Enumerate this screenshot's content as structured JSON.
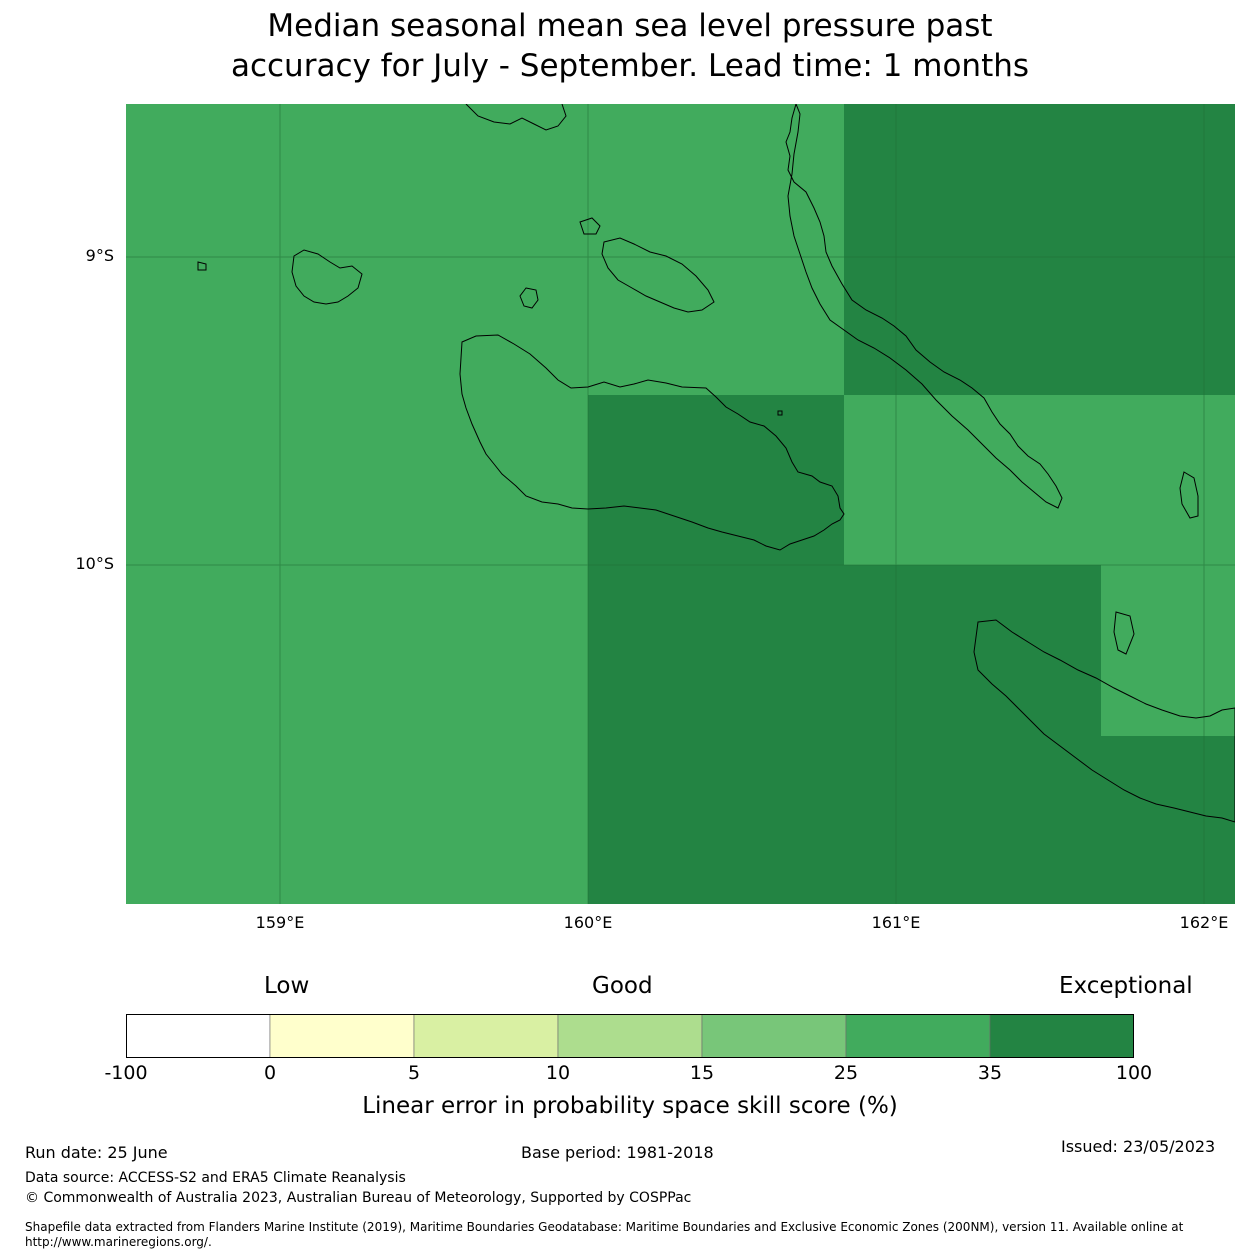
{
  "title": {
    "line1": "Median seasonal mean sea level pressure past",
    "line2": "accuracy for July - September. Lead time: 1 months"
  },
  "map": {
    "lat_ticks": [
      "9°S",
      "10°S"
    ],
    "lon_ticks": [
      "159°E",
      "160°E",
      "161°E",
      "162°E"
    ],
    "colors": {
      "band_25_35": "#41ab5d",
      "band_35_100": "#238443",
      "coast": "#000000",
      "grid": "#1f6e35"
    }
  },
  "colorbar": {
    "categories": [
      "Low",
      "Good",
      "Exceptional"
    ],
    "ticks": [
      "-100",
      "0",
      "5",
      "10",
      "15",
      "25",
      "35",
      "100"
    ],
    "colors": [
      "#ffffff",
      "#ffffcc",
      "#d9f0a3",
      "#addd8e",
      "#78c679",
      "#41ab5d",
      "#238443"
    ],
    "label": "Linear error in probability space skill score (%)"
  },
  "footer": {
    "run_date": "Run date: 25 June",
    "base_period": "Base period: 1981-2018",
    "issued": "Issued: 23/05/2023",
    "data_source": "Data source: ACCESS-S2 and ERA5 Climate Reanalysis",
    "copyright": "© Commonwealth of Australia 2023, Australian Bureau of Meteorology, Supported by COSPPac",
    "shapefile_line1": "Shapefile data extracted from Flanders Marine Institute (2019), Maritime Boundaries Geodatabase: Maritime Boundaries and Exclusive Economic Zones (200NM), version 11. Available online at",
    "shapefile_line2": "http://www.marineregions.org/."
  }
}
